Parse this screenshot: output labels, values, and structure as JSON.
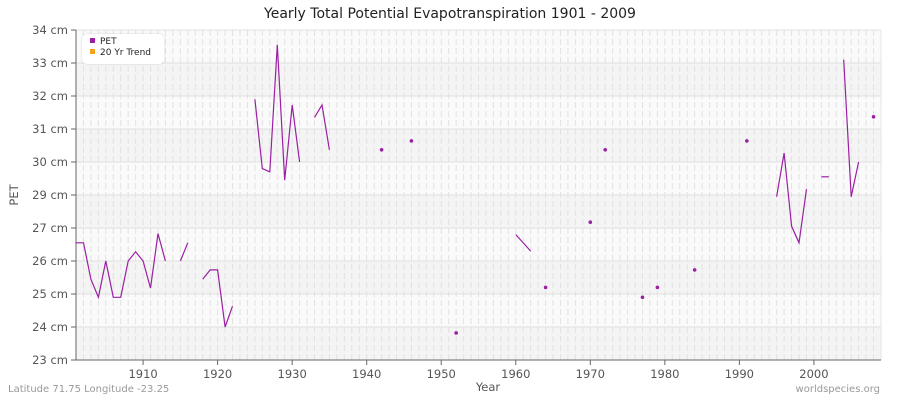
{
  "chart_data": {
    "type": "line",
    "title": "Yearly Total Potential Evapotranspiration 1901 - 2009",
    "xlabel": "Year",
    "ylabel": "PET",
    "x_ticks": [
      1910,
      1920,
      1930,
      1940,
      1950,
      1960,
      1970,
      1980,
      1990,
      2000
    ],
    "y_ticks": [
      "23 cm",
      "24 cm",
      "25 cm",
      "26 cm",
      "27 cm",
      "29 cm",
      "30 cm",
      "31 cm",
      "32 cm",
      "33 cm",
      "34 cm"
    ],
    "xlim": [
      1901,
      2009
    ],
    "ylim": [
      23,
      34
    ],
    "grid": true,
    "legend_position": "top-left",
    "legend": [
      {
        "label": "PET",
        "color": "#9b1fa3"
      },
      {
        "label": "20 Yr Trend",
        "color": "#f5a31a"
      }
    ],
    "series": [
      {
        "name": "PET",
        "color": "#9b1fa3",
        "points": [
          [
            1901,
            26.55
          ],
          [
            1902,
            26.55
          ],
          [
            1903,
            25.45
          ],
          [
            1904,
            24.9
          ],
          [
            1905,
            26.0
          ],
          [
            1906,
            24.9
          ],
          [
            1907,
            24.9
          ],
          [
            1908,
            26.0
          ],
          [
            1909,
            26.28
          ],
          [
            1910,
            26.0
          ],
          [
            1911,
            25.18
          ],
          [
            1912,
            26.83
          ],
          [
            1913,
            26.0
          ],
          [
            1914,
            null
          ],
          [
            1915,
            26.0
          ],
          [
            1916,
            26.55
          ],
          [
            1917,
            null
          ],
          [
            1918,
            25.45
          ],
          [
            1919,
            25.73
          ],
          [
            1920,
            25.73
          ],
          [
            1921,
            24.0
          ],
          [
            1922,
            24.63
          ],
          [
            1923,
            null
          ],
          [
            1924,
            null
          ],
          [
            1925,
            31.9
          ],
          [
            1926,
            29.8
          ],
          [
            1927,
            29.7
          ],
          [
            1928,
            33.55
          ],
          [
            1929,
            29.45
          ],
          [
            1930,
            31.73
          ],
          [
            1931,
            30.0
          ],
          [
            1932,
            null
          ],
          [
            1933,
            31.35
          ],
          [
            1934,
            31.73
          ],
          [
            1935,
            30.37
          ],
          [
            1936,
            null
          ],
          [
            1941,
            null
          ],
          [
            1942,
            30.37
          ],
          [
            1943,
            null
          ],
          [
            1945,
            null
          ],
          [
            1946,
            30.64
          ],
          [
            1947,
            null
          ],
          [
            1951,
            null
          ],
          [
            1952,
            23.82
          ],
          [
            1953,
            null
          ],
          [
            1959,
            null
          ],
          [
            1960,
            26.8
          ],
          [
            1962,
            26.3
          ],
          [
            1963,
            null
          ],
          [
            1964,
            25.2
          ],
          [
            1965,
            null
          ],
          [
            1969,
            null
          ],
          [
            1970,
            27.35
          ],
          [
            1971,
            null
          ],
          [
            1972,
            30.37
          ],
          [
            1973,
            null
          ],
          [
            1976,
            null
          ],
          [
            1977,
            24.9
          ],
          [
            1978,
            null
          ],
          [
            1979,
            25.2
          ],
          [
            1980,
            null
          ],
          [
            1983,
            null
          ],
          [
            1984,
            25.73
          ],
          [
            1985,
            null
          ],
          [
            1990,
            null
          ],
          [
            1991,
            30.64
          ],
          [
            1992,
            null
          ],
          [
            1994,
            null
          ],
          [
            1995,
            28.9
          ],
          [
            1996,
            30.27
          ],
          [
            1997,
            27.1
          ],
          [
            1998,
            26.55
          ],
          [
            1999,
            29.18
          ],
          [
            2000,
            null
          ],
          [
            2001,
            29.55
          ],
          [
            2002,
            29.55
          ],
          [
            2003,
            null
          ],
          [
            2004,
            33.1
          ],
          [
            2005,
            28.9
          ],
          [
            2006,
            30.0
          ],
          [
            2007,
            null
          ],
          [
            2008,
            31.37
          ]
        ]
      },
      {
        "name": "20 Yr Trend",
        "color": "#f5a31a",
        "points": []
      }
    ]
  },
  "footer": {
    "location": "Latitude 71.75 Longitude -23.25",
    "source": "worldspecies.org"
  }
}
